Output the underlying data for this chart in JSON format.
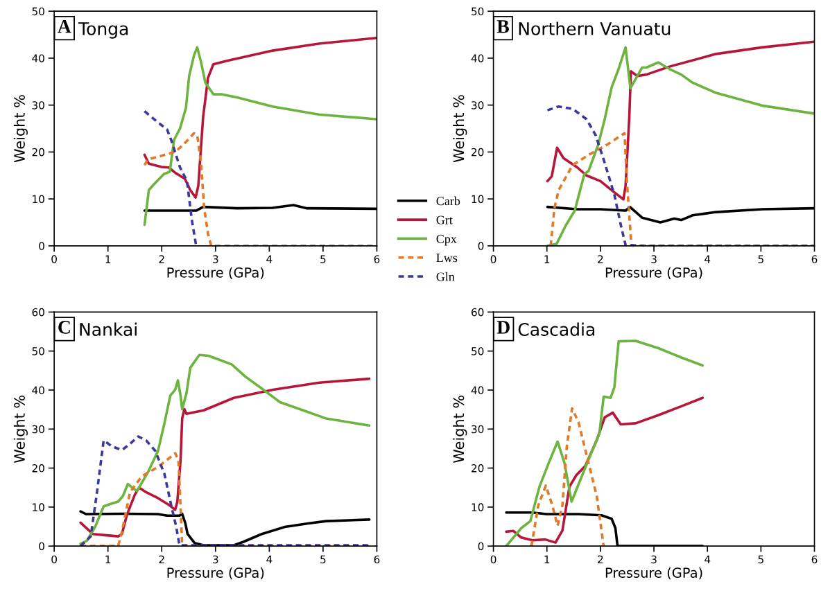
{
  "chart_data": [
    {
      "type": "line",
      "title": "Tonga",
      "annotations": [
        "A"
      ],
      "xlabel": "Pressure (GPa)",
      "ylabel": "Weight %",
      "xlim": [
        0,
        6
      ],
      "ylim": [
        0,
        50
      ],
      "xticks": [
        0,
        1,
        2,
        3,
        4,
        5,
        6
      ],
      "yticks": [
        0,
        10,
        20,
        30,
        40,
        50
      ],
      "grid": false,
      "legend": "right",
      "series": [
        {
          "name": "Carb",
          "color": "#000000",
          "line_style": "solid",
          "x": [
            1.68,
            2.64,
            2.77,
            3.41,
            4.06,
            4.45,
            4.7,
            5.99
          ],
          "values": [
            7.5,
            7.5,
            8.3,
            8.0,
            8.1,
            8.7,
            8.0,
            7.9
          ]
        },
        {
          "name": "Grt",
          "color": "#b5163a",
          "line_style": "solid",
          "x": [
            1.68,
            1.76,
            2.0,
            2.13,
            2.26,
            2.43,
            2.53,
            2.63,
            2.68,
            2.77,
            2.86,
            2.96,
            3.2,
            4.06,
            4.92,
            5.99
          ],
          "values": [
            19.4,
            17.5,
            16.8,
            16.7,
            15.5,
            14.3,
            11.9,
            10.3,
            12.8,
            27.5,
            35.8,
            38.7,
            39.4,
            41.6,
            43.1,
            44.3
          ]
        },
        {
          "name": "Cpx",
          "color": "#6cb33f",
          "line_style": "solid",
          "x": [
            1.68,
            1.76,
            1.87,
            2.04,
            2.15,
            2.23,
            2.34,
            2.45,
            2.51,
            2.6,
            2.66,
            2.73,
            2.81,
            2.96,
            3.11,
            3.41,
            4.06,
            4.92,
            5.99
          ],
          "values": [
            4.5,
            11.9,
            13.3,
            15.3,
            15.8,
            22.6,
            25.0,
            29.4,
            36.2,
            40.6,
            42.3,
            39.2,
            34.8,
            32.3,
            32.3,
            31.6,
            29.7,
            28.0,
            27.0
          ]
        },
        {
          "name": "Lws",
          "color": "#e07a28",
          "line_style": "dashed",
          "x": [
            1.68,
            1.74,
            2.0,
            2.26,
            2.43,
            2.6,
            2.66,
            2.73,
            2.79,
            2.86,
            2.92,
            5.99
          ],
          "values": [
            17.2,
            18.4,
            19.2,
            20.1,
            21.9,
            24.0,
            23.6,
            17.7,
            8.0,
            2.6,
            0,
            0
          ]
        },
        {
          "name": "Gln",
          "color": "#3a3a9c",
          "line_style": "dashed",
          "x": [
            1.68,
            1.91,
            2.1,
            2.19,
            2.34,
            2.47,
            2.56,
            2.64
          ],
          "values": [
            28.7,
            26.5,
            24.8,
            22.1,
            16.7,
            13.8,
            5.5,
            0
          ]
        }
      ]
    },
    {
      "type": "line",
      "title": "Northern Vanuatu",
      "annotations": [
        "B"
      ],
      "xlabel": "Pressure (GPa)",
      "ylabel": "Weight %",
      "xlim": [
        0,
        6
      ],
      "ylim": [
        0,
        50
      ],
      "xticks": [
        0,
        1,
        2,
        3,
        4,
        5,
        6
      ],
      "yticks": [
        0,
        10,
        20,
        30,
        40,
        50
      ],
      "grid": false,
      "series": [
        {
          "color": "#000000",
          "line_style": "solid",
          "x": [
            1.01,
            1.57,
            2.0,
            2.47,
            2.55,
            2.78,
            3.12,
            3.38,
            3.51,
            3.72,
            4.16,
            5.02,
            5.99
          ],
          "values": [
            8.3,
            7.8,
            7.8,
            7.5,
            8.3,
            6.0,
            5.0,
            5.8,
            5.5,
            6.5,
            7.2,
            7.8,
            8.0
          ]
        },
        {
          "color": "#b5163a",
          "line_style": "solid",
          "x": [
            1.01,
            1.09,
            1.19,
            1.31,
            1.57,
            1.74,
            2.0,
            2.26,
            2.43,
            2.47,
            2.54,
            2.57,
            2.69,
            2.86,
            3.29,
            4.16,
            5.02,
            5.99
          ],
          "values": [
            13.8,
            14.8,
            20.9,
            18.7,
            16.7,
            15.0,
            13.8,
            11.4,
            9.9,
            12.8,
            27.5,
            37.2,
            36.2,
            36.5,
            38.2,
            40.9,
            42.3,
            43.5
          ]
        },
        {
          "color": "#6cb33f",
          "line_style": "solid",
          "x": [
            1.01,
            1.18,
            1.35,
            1.52,
            1.7,
            1.78,
            1.96,
            2.08,
            2.21,
            2.34,
            2.47,
            2.56,
            2.78,
            2.86,
            3.08,
            3.29,
            3.51,
            3.72,
            4.16,
            5.02,
            5.99
          ],
          "values": [
            0,
            0.4,
            4.3,
            7.5,
            15.3,
            16.0,
            21.6,
            27.0,
            33.8,
            37.7,
            42.3,
            33.6,
            38.0,
            38.0,
            39.1,
            37.7,
            36.5,
            34.8,
            32.6,
            29.9,
            28.2
          ]
        },
        {
          "color": "#e07a28",
          "line_style": "dashed",
          "x": [
            1.07,
            1.14,
            1.22,
            1.48,
            1.78,
            2.13,
            2.45,
            2.5,
            2.58,
            5.99
          ],
          "values": [
            0,
            8.0,
            11.9,
            17.2,
            19.4,
            21.6,
            24.0,
            12.8,
            0,
            0
          ]
        },
        {
          "color": "#3a3a9c",
          "line_style": "dashed",
          "x": [
            1.01,
            1.22,
            1.48,
            1.74,
            1.91,
            2.08,
            2.26,
            2.39,
            2.47,
            2.86,
            5.99
          ],
          "values": [
            28.9,
            29.7,
            29.2,
            27.0,
            23.6,
            17.7,
            10.9,
            4.0,
            0.2,
            0,
            0
          ]
        }
      ]
    },
    {
      "type": "line",
      "title": "Nankai",
      "annotations": [
        "C"
      ],
      "xlabel": "Pressure (GPa)",
      "ylabel": "Weight %",
      "xlim": [
        0,
        6
      ],
      "ylim": [
        0,
        60
      ],
      "xticks": [
        0,
        1,
        2,
        3,
        4,
        5,
        6
      ],
      "yticks": [
        0,
        10,
        20,
        30,
        40,
        50,
        60
      ],
      "grid": false,
      "series": [
        {
          "color": "#000000",
          "line_style": "solid",
          "x": [
            0.49,
            0.59,
            1.28,
            1.93,
            2.1,
            2.33,
            2.38,
            2.44,
            2.48,
            2.61,
            2.78,
            3.34,
            3.52,
            3.86,
            4.29,
            4.72,
            5.06,
            5.86
          ],
          "values": [
            8.9,
            8.2,
            8.3,
            8.2,
            7.8,
            7.8,
            8.3,
            5.8,
            3.1,
            0.8,
            0.2,
            0.2,
            1.1,
            3.1,
            4.9,
            5.8,
            6.4,
            6.8
          ]
        },
        {
          "color": "#b5163a",
          "line_style": "solid",
          "x": [
            0.49,
            0.72,
            0.94,
            1.19,
            1.26,
            1.35,
            1.5,
            1.58,
            1.71,
            1.93,
            2.14,
            2.25,
            2.29,
            2.35,
            2.38,
            2.42,
            2.46,
            2.78,
            3.34,
            4.07,
            4.93,
            5.86
          ],
          "values": [
            6.0,
            3.1,
            2.8,
            2.5,
            3.1,
            7.9,
            13.2,
            15.0,
            13.8,
            12.3,
            10.5,
            9.3,
            11.4,
            22.1,
            32.7,
            35.1,
            33.9,
            34.8,
            38.0,
            40.1,
            41.9,
            42.9
          ]
        },
        {
          "color": "#6cb33f",
          "line_style": "solid",
          "x": [
            0.49,
            0.61,
            0.76,
            0.92,
            1.07,
            1.19,
            1.28,
            1.37,
            1.45,
            1.54,
            1.75,
            1.93,
            2.05,
            2.16,
            2.25,
            2.3,
            2.35,
            2.38,
            2.46,
            2.53,
            2.7,
            2.87,
            3.3,
            3.56,
            3.86,
            4.2,
            4.63,
            5.06,
            5.86
          ],
          "values": [
            0.6,
            1.4,
            4.9,
            10.2,
            10.9,
            11.4,
            12.9,
            15.9,
            15.0,
            14.1,
            19.1,
            24.4,
            31.5,
            38.6,
            40.1,
            42.5,
            38.6,
            35.1,
            39.2,
            45.7,
            49.0,
            48.8,
            46.6,
            43.4,
            40.4,
            36.9,
            34.8,
            32.7,
            30.9
          ]
        },
        {
          "color": "#e07a28",
          "line_style": "dashed",
          "x": [
            0.49,
            1.19,
            1.26,
            1.41,
            1.63,
            1.93,
            2.1,
            2.25,
            2.31,
            2.35,
            2.38,
            5.86
          ],
          "values": [
            0,
            0,
            3.7,
            13.8,
            17.9,
            20.3,
            22.1,
            23.8,
            22.1,
            10.1,
            0,
            0
          ]
        },
        {
          "color": "#3a3a9c",
          "line_style": "dashed",
          "x": [
            0.49,
            0.68,
            0.79,
            0.92,
            1.07,
            1.26,
            1.41,
            1.56,
            1.71,
            1.88,
            2.05,
            2.18,
            2.27,
            2.33,
            5.86
          ],
          "values": [
            0,
            2.5,
            13.2,
            27.1,
            25.6,
            24.6,
            26.2,
            28.1,
            27.1,
            24.4,
            18.5,
            10.2,
            4.9,
            0.2,
            0.2
          ]
        }
      ]
    },
    {
      "type": "line",
      "title": "Cascadia",
      "annotations": [
        "D"
      ],
      "xlabel": "Pressure (GPa)",
      "ylabel": "Weight %",
      "xlim": [
        0,
        6
      ],
      "ylim": [
        0,
        60
      ],
      "xticks": [
        0,
        1,
        2,
        3,
        4,
        5,
        6
      ],
      "yticks": [
        0,
        10,
        20,
        30,
        40,
        50,
        60
      ],
      "grid": false,
      "series": [
        {
          "color": "#000000",
          "line_style": "solid",
          "x": [
            0.24,
            0.73,
            0.99,
            1.59,
            2.02,
            2.21,
            2.28,
            2.32,
            3.91
          ],
          "values": [
            8.6,
            8.6,
            8.2,
            8.2,
            7.9,
            7.0,
            4.6,
            0,
            0
          ]
        },
        {
          "color": "#b5163a",
          "line_style": "solid",
          "x": [
            0.24,
            0.37,
            0.52,
            0.73,
            0.97,
            1.16,
            1.29,
            1.42,
            1.55,
            1.72,
            1.93,
            2.08,
            2.23,
            2.38,
            2.66,
            3.09,
            3.52,
            3.91
          ],
          "values": [
            3.7,
            3.9,
            2.2,
            1.5,
            1.7,
            0.9,
            4.0,
            15.2,
            18.2,
            20.6,
            27.1,
            33.0,
            34.2,
            31.2,
            31.5,
            33.6,
            35.9,
            38.0
          ]
        },
        {
          "color": "#6cb33f",
          "line_style": "solid",
          "x": [
            0.24,
            0.52,
            0.69,
            0.86,
            1.03,
            1.2,
            1.33,
            1.46,
            1.59,
            1.8,
            1.98,
            2.06,
            2.19,
            2.26,
            2.34,
            2.66,
            3.09,
            3.52,
            3.91
          ],
          "values": [
            0,
            4.6,
            6.4,
            15.2,
            21.2,
            26.8,
            21.2,
            11.4,
            15.8,
            22.9,
            28.8,
            38.3,
            38.0,
            40.7,
            52.5,
            52.6,
            50.7,
            48.3,
            46.3
          ]
        },
        {
          "color": "#e07a28",
          "line_style": "dashed",
          "x": [
            0.71,
            0.84,
            0.98,
            1.1,
            1.2,
            1.29,
            1.37,
            1.47,
            1.59,
            1.76,
            1.93,
            2.06
          ],
          "values": [
            0,
            10.5,
            15.5,
            10.5,
            5.2,
            10.5,
            25.3,
            35.3,
            31.8,
            22.3,
            12.9,
            0
          ]
        }
      ]
    }
  ]
}
